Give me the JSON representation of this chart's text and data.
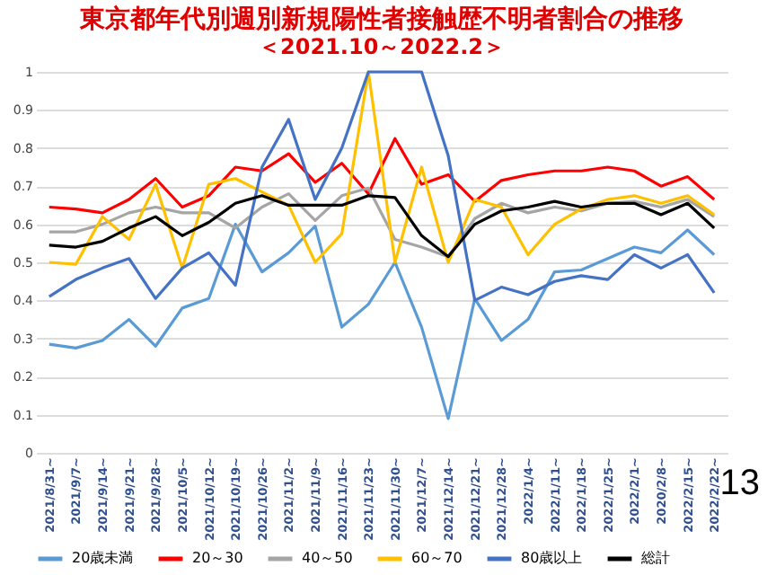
{
  "chart_data": {
    "type": "line",
    "title": "東京都年代別週別新規陽性者接触歴不明者割合の推移",
    "subtitle": "＜2021.10～2022.2＞",
    "categories": [
      "2021/8/31~",
      "2021/9/7~",
      "2021/9/14~",
      "2021/9/21~",
      "2021/9/28~",
      "2021/10/5~",
      "2021/10/12~",
      "2021/10/19~",
      "2021/10/26~",
      "2021/11/2~",
      "2021/11/9~",
      "2021/11/16~",
      "2021/11/23~",
      "2021/11/30~",
      "2021/12/7~",
      "2021/12/14~",
      "2021/12/21~",
      "2021/12/28~",
      "2022/1/4~",
      "2022/1/11~",
      "2022/1/18~",
      "2022/1/25~",
      "2022/2/1~",
      "2020/2/8~",
      "2022/2/15~",
      "2022/2/22~"
    ],
    "series": [
      {
        "name": "20歳未満",
        "color": "#5b9bd5",
        "values": [
          0.285,
          0.275,
          0.295,
          0.35,
          0.28,
          0.38,
          0.405,
          0.6,
          0.475,
          0.525,
          0.595,
          0.33,
          0.39,
          0.5,
          0.33,
          0.09,
          0.405,
          0.295,
          0.35,
          0.475,
          0.48,
          0.51,
          0.54,
          0.525,
          0.585,
          0.52
        ]
      },
      {
        "name": "20～30",
        "color": "#ff0000",
        "values": [
          0.645,
          0.64,
          0.63,
          0.665,
          0.72,
          0.645,
          0.675,
          0.75,
          0.74,
          0.785,
          0.71,
          0.76,
          0.68,
          0.825,
          0.705,
          0.73,
          0.66,
          0.715,
          0.73,
          0.74,
          0.74,
          0.75,
          0.74,
          0.7,
          0.725,
          0.665
        ]
      },
      {
        "name": "40～50",
        "color": "#a5a5a5",
        "values": [
          0.58,
          0.58,
          0.6,
          0.63,
          0.645,
          0.63,
          0.63,
          0.59,
          0.645,
          0.68,
          0.61,
          0.675,
          0.695,
          0.56,
          0.54,
          0.515,
          0.615,
          0.655,
          0.63,
          0.645,
          0.635,
          0.655,
          0.66,
          0.645,
          0.665,
          0.62
        ]
      },
      {
        "name": "60～70",
        "color": "#ffc000",
        "values": [
          0.5,
          0.495,
          0.62,
          0.56,
          0.705,
          0.485,
          0.705,
          0.72,
          0.685,
          0.65,
          0.5,
          0.575,
          1.0,
          0.5,
          0.75,
          0.5,
          0.665,
          0.645,
          0.52,
          0.6,
          0.64,
          0.665,
          0.675,
          0.655,
          0.675,
          0.625
        ]
      },
      {
        "name": "80歳以上",
        "color": "#4472c4",
        "values": [
          0.41,
          0.455,
          0.485,
          0.51,
          0.405,
          0.485,
          0.525,
          0.44,
          0.75,
          0.875,
          0.665,
          0.8,
          1.0,
          1.0,
          1.0,
          0.78,
          0.4,
          0.435,
          0.415,
          0.45,
          0.465,
          0.455,
          0.52,
          0.485,
          0.52,
          0.42
        ]
      },
      {
        "name": "総計",
        "color": "#000000",
        "values": [
          0.545,
          0.54,
          0.555,
          0.59,
          0.62,
          0.57,
          0.605,
          0.655,
          0.675,
          0.65,
          0.65,
          0.65,
          0.675,
          0.67,
          0.57,
          0.515,
          0.6,
          0.635,
          0.645,
          0.66,
          0.645,
          0.655,
          0.655,
          0.625,
          0.655,
          0.59
        ]
      }
    ],
    "ylim": [
      0,
      1
    ],
    "yticks": [
      0,
      0.1,
      0.2,
      0.3,
      0.4,
      0.5,
      0.6,
      0.7,
      0.8,
      0.9,
      1
    ],
    "grid": "y",
    "legend": "bottom",
    "annotations": [
      "13"
    ]
  }
}
